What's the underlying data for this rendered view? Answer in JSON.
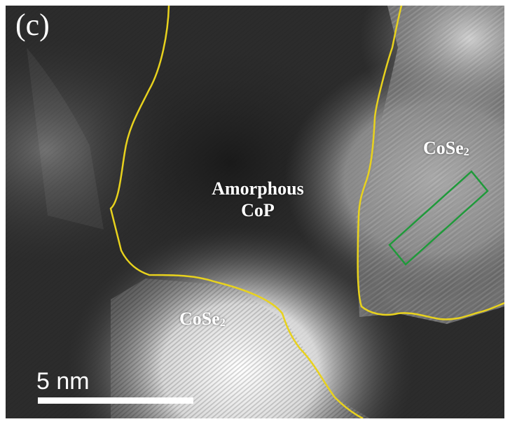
{
  "panel_label": "(c)",
  "regions": {
    "amorphous_line1": "Amorphous",
    "amorphous_line2": "CoP",
    "cose2_base": "CoSe",
    "cose2_subscript": "2"
  },
  "scale_bar": {
    "label": "5 nm"
  },
  "colors": {
    "boundary": "#e8d21d",
    "selection_box": "#1f9a3a"
  }
}
